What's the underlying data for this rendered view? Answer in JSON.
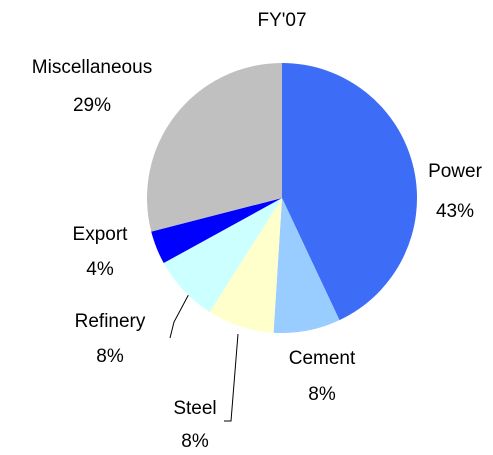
{
  "chart_data": {
    "type": "pie",
    "title": "FY'07",
    "categories": [
      "Power",
      "Cement",
      "Steel",
      "Refinery",
      "Export",
      "Miscellaneous"
    ],
    "values": [
      43,
      8,
      8,
      8,
      4,
      29
    ],
    "value_labels": [
      "43%",
      "8%",
      "8%",
      "8%",
      "4%",
      "29%"
    ],
    "colors": [
      "#3d6cf7",
      "#99ccff",
      "#ffffcc",
      "#ccffff",
      "#0000ff",
      "#c0c0c0"
    ]
  }
}
